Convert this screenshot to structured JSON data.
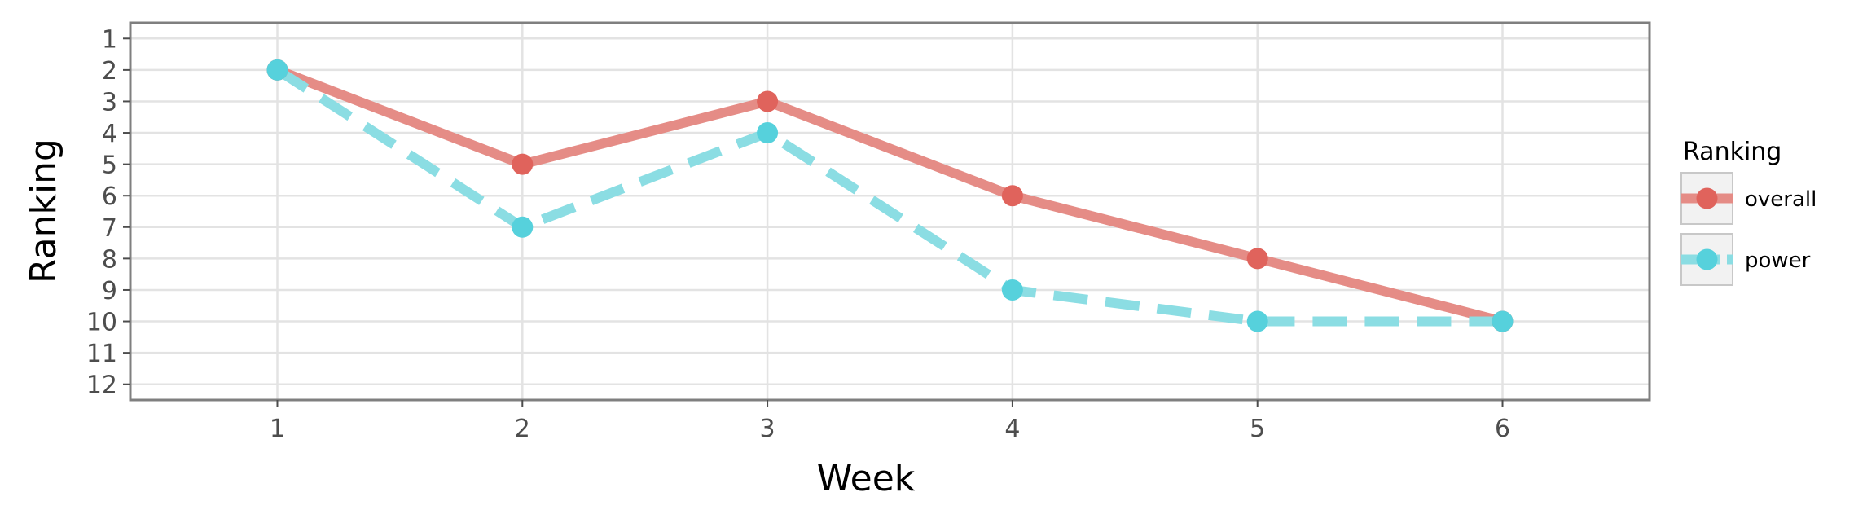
{
  "chart_data": {
    "type": "line",
    "xlabel": "Week",
    "ylabel": "Ranking",
    "x": [
      1,
      2,
      3,
      4,
      5,
      6
    ],
    "xlim": [
      0.4,
      6.6
    ],
    "x_ticks": [
      "1",
      "2",
      "3",
      "4",
      "5",
      "6"
    ],
    "ylim": [
      12.5,
      0.5
    ],
    "y_reversed": true,
    "y_ticks": [
      "1",
      "2",
      "3",
      "4",
      "5",
      "6",
      "7",
      "8",
      "9",
      "10",
      "11",
      "12"
    ],
    "grid": true,
    "legend": {
      "title": "Ranking",
      "placement": "right"
    },
    "series": [
      {
        "name": "overall",
        "values": [
          2,
          5,
          3,
          6,
          8,
          10
        ],
        "color": "#e0635c",
        "line_color": "#e58c86",
        "dashed": false
      },
      {
        "name": "power",
        "values": [
          2,
          7,
          4,
          9,
          10,
          10
        ],
        "color": "#56d1dc",
        "line_color": "#8bdde3",
        "dashed": true
      }
    ]
  }
}
